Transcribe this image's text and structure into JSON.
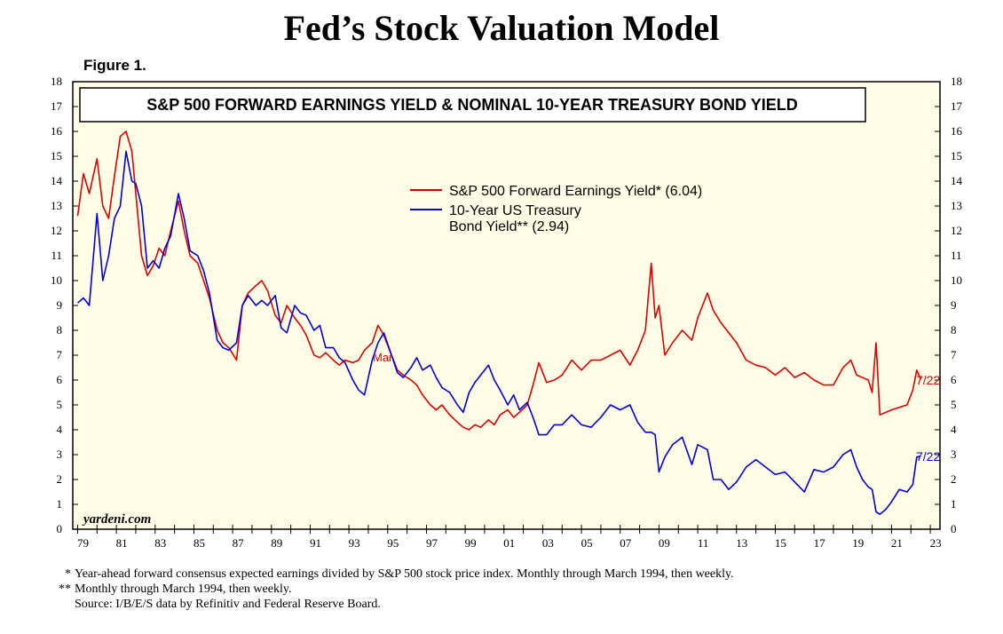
{
  "page": {
    "title": "Fed’s Stock Valuation Model",
    "figure_label": "Figure 1.",
    "watermark": "yardeni.com",
    "footnotes": [
      {
        "mark": "*",
        "text": "Year-ahead forward consensus expected earnings divided by S&P 500 stock price index. Monthly through March 1994, then weekly."
      },
      {
        "mark": "**",
        "text": "Monthly through March 1994, then weekly."
      },
      {
        "mark": "",
        "text": "Source: I/B/E/S data by Refinitiv and Federal Reserve Board."
      }
    ]
  },
  "chart_data": {
    "type": "line",
    "title": "S&P 500 FORWARD EARNINGS YIELD & NOMINAL 10-YEAR TREASURY BOND YIELD",
    "xlabel": "",
    "ylabel": "",
    "xlim": [
      1978.75,
      2023.5
    ],
    "ylim": [
      0,
      18
    ],
    "yticks": [
      0,
      1,
      2,
      3,
      4,
      5,
      6,
      7,
      8,
      9,
      10,
      11,
      12,
      13,
      14,
      15,
      16,
      17,
      18
    ],
    "xtick_labels": [
      "79",
      "81",
      "83",
      "85",
      "87",
      "89",
      "91",
      "93",
      "95",
      "97",
      "99",
      "01",
      "03",
      "05",
      "07",
      "09",
      "11",
      "13",
      "15",
      "17",
      "19",
      "21",
      "23"
    ],
    "xtick_years": [
      1979,
      1981,
      1983,
      1985,
      1987,
      1989,
      1991,
      1993,
      1995,
      1997,
      1999,
      2001,
      2003,
      2005,
      2007,
      2009,
      2011,
      2013,
      2015,
      2017,
      2019,
      2021,
      2023
    ],
    "background": "#fffde6",
    "grid": false,
    "legend_position": "upper-center",
    "annotation": "Mar",
    "series": [
      {
        "name": "S&P 500 Forward Earnings Yield* (6.04)",
        "color": "#e00000",
        "end_label": "7/22",
        "x": [
          1979.0,
          1979.3,
          1979.6,
          1980.0,
          1980.3,
          1980.6,
          1980.9,
          1981.2,
          1981.5,
          1981.8,
          1982.0,
          1982.3,
          1982.6,
          1982.9,
          1983.2,
          1983.5,
          1983.8,
          1984.2,
          1984.5,
          1984.8,
          1985.2,
          1985.5,
          1985.8,
          1986.2,
          1986.5,
          1986.8,
          1987.2,
          1987.5,
          1987.8,
          1988.2,
          1988.5,
          1988.8,
          1989.2,
          1989.5,
          1989.8,
          1990.2,
          1990.5,
          1990.8,
          1991.2,
          1991.5,
          1991.8,
          1992.2,
          1992.5,
          1992.8,
          1993.2,
          1993.5,
          1993.8,
          1994.2,
          1994.5,
          1994.8,
          1995.2,
          1995.5,
          1995.8,
          1996.2,
          1996.5,
          1996.8,
          1997.2,
          1997.5,
          1997.8,
          1998.2,
          1998.6,
          1998.9,
          1999.2,
          1999.5,
          1999.8,
          2000.2,
          2000.5,
          2000.8,
          2001.2,
          2001.5,
          2001.8,
          2002.2,
          2002.5,
          2002.8,
          2003.2,
          2003.6,
          2004.0,
          2004.5,
          2005.0,
          2005.5,
          2006.0,
          2006.5,
          2007.0,
          2007.5,
          2007.9,
          2008.3,
          2008.6,
          2008.8,
          2009.0,
          2009.3,
          2009.7,
          2010.2,
          2010.7,
          2011.0,
          2011.5,
          2011.8,
          2012.2,
          2012.6,
          2013.0,
          2013.5,
          2014.0,
          2014.5,
          2015.0,
          2015.5,
          2016.0,
          2016.5,
          2017.0,
          2017.5,
          2018.0,
          2018.5,
          2018.9,
          2019.2,
          2019.5,
          2019.8,
          2020.0,
          2020.2,
          2020.4,
          2020.7,
          2021.0,
          2021.4,
          2021.8,
          2022.1,
          2022.3,
          2022.5
        ],
        "y": [
          12.6,
          14.3,
          13.5,
          14.9,
          13.0,
          12.5,
          14.2,
          15.8,
          16.0,
          15.2,
          13.5,
          11.0,
          10.2,
          10.6,
          11.3,
          11.0,
          12.0,
          13.2,
          12.0,
          11.0,
          10.7,
          10.0,
          9.3,
          8.0,
          7.5,
          7.3,
          6.8,
          9.0,
          9.5,
          9.8,
          10.0,
          9.6,
          8.6,
          8.3,
          9.0,
          8.5,
          8.2,
          7.8,
          7.0,
          6.9,
          7.1,
          6.8,
          6.6,
          6.8,
          6.7,
          6.8,
          7.2,
          7.5,
          8.2,
          7.8,
          7.0,
          6.4,
          6.2,
          6.0,
          5.8,
          5.4,
          5.0,
          4.8,
          5.0,
          4.6,
          4.3,
          4.1,
          4.0,
          4.2,
          4.1,
          4.4,
          4.2,
          4.6,
          4.8,
          4.5,
          4.7,
          5.0,
          5.8,
          6.7,
          5.9,
          6.0,
          6.2,
          6.8,
          6.4,
          6.8,
          6.8,
          7.0,
          7.2,
          6.6,
          7.2,
          8.0,
          10.7,
          8.5,
          9.0,
          7.0,
          7.5,
          8.0,
          7.6,
          8.5,
          9.5,
          8.8,
          8.3,
          7.9,
          7.5,
          6.8,
          6.6,
          6.5,
          6.2,
          6.5,
          6.1,
          6.3,
          6.0,
          5.8,
          5.8,
          6.5,
          6.8,
          6.2,
          6.1,
          6.0,
          5.5,
          7.5,
          4.6,
          4.7,
          4.8,
          4.9,
          5.0,
          5.6,
          6.4,
          6.04
        ]
      },
      {
        "name": "10-Year US Treasury Bond Yield** (2.94)",
        "color": "#0000e0",
        "end_label": "7/22",
        "x": [
          1979.0,
          1979.3,
          1979.6,
          1980.0,
          1980.3,
          1980.6,
          1980.9,
          1981.2,
          1981.5,
          1981.8,
          1982.0,
          1982.3,
          1982.6,
          1982.9,
          1983.2,
          1983.5,
          1983.8,
          1984.2,
          1984.5,
          1984.8,
          1985.2,
          1985.5,
          1985.8,
          1986.2,
          1986.5,
          1986.8,
          1987.2,
          1987.5,
          1987.8,
          1988.2,
          1988.5,
          1988.8,
          1989.2,
          1989.5,
          1989.8,
          1990.2,
          1990.5,
          1990.8,
          1991.2,
          1991.5,
          1991.8,
          1992.2,
          1992.5,
          1992.8,
          1993.2,
          1993.5,
          1993.8,
          1994.2,
          1994.5,
          1994.8,
          1995.2,
          1995.5,
          1995.8,
          1996.2,
          1996.5,
          1996.8,
          1997.2,
          1997.5,
          1997.8,
          1998.2,
          1998.6,
          1998.9,
          1999.2,
          1999.5,
          1999.8,
          2000.2,
          2000.5,
          2000.8,
          2001.2,
          2001.5,
          2001.8,
          2002.2,
          2002.5,
          2002.8,
          2003.2,
          2003.6,
          2004.0,
          2004.5,
          2005.0,
          2005.5,
          2006.0,
          2006.5,
          2007.0,
          2007.5,
          2007.9,
          2008.3,
          2008.6,
          2008.8,
          2009.0,
          2009.3,
          2009.7,
          2010.2,
          2010.7,
          2011.0,
          2011.5,
          2011.8,
          2012.2,
          2012.6,
          2013.0,
          2013.5,
          2014.0,
          2014.5,
          2015.0,
          2015.5,
          2016.0,
          2016.5,
          2017.0,
          2017.5,
          2018.0,
          2018.5,
          2018.9,
          2019.2,
          2019.5,
          2019.8,
          2020.0,
          2020.2,
          2020.4,
          2020.7,
          2021.0,
          2021.4,
          2021.8,
          2022.1,
          2022.3,
          2022.5
        ],
        "y": [
          9.1,
          9.3,
          9.0,
          12.7,
          10.0,
          11.0,
          12.5,
          13.0,
          15.2,
          14.0,
          13.9,
          13.0,
          10.5,
          10.8,
          10.5,
          11.3,
          11.8,
          13.5,
          12.5,
          11.2,
          11.0,
          10.4,
          9.5,
          7.6,
          7.3,
          7.2,
          7.5,
          9.0,
          9.4,
          9.0,
          9.2,
          9.0,
          9.4,
          8.1,
          7.9,
          9.0,
          8.7,
          8.6,
          8.0,
          8.2,
          7.3,
          7.3,
          6.9,
          6.7,
          6.0,
          5.6,
          5.4,
          6.8,
          7.5,
          7.9,
          7.0,
          6.3,
          6.1,
          6.5,
          6.9,
          6.4,
          6.6,
          6.1,
          5.7,
          5.5,
          5.0,
          4.7,
          5.5,
          5.9,
          6.2,
          6.6,
          6.0,
          5.6,
          5.0,
          5.4,
          4.8,
          5.1,
          4.5,
          3.8,
          3.8,
          4.2,
          4.2,
          4.6,
          4.2,
          4.1,
          4.5,
          5.0,
          4.8,
          5.0,
          4.3,
          3.9,
          3.9,
          3.8,
          2.3,
          2.9,
          3.4,
          3.7,
          2.6,
          3.4,
          3.2,
          2.0,
          2.0,
          1.6,
          1.9,
          2.5,
          2.8,
          2.5,
          2.2,
          2.3,
          1.9,
          1.5,
          2.4,
          2.3,
          2.5,
          3.0,
          3.2,
          2.5,
          2.0,
          1.7,
          1.6,
          0.7,
          0.6,
          0.8,
          1.1,
          1.6,
          1.5,
          1.8,
          2.9,
          2.94
        ]
      }
    ]
  }
}
